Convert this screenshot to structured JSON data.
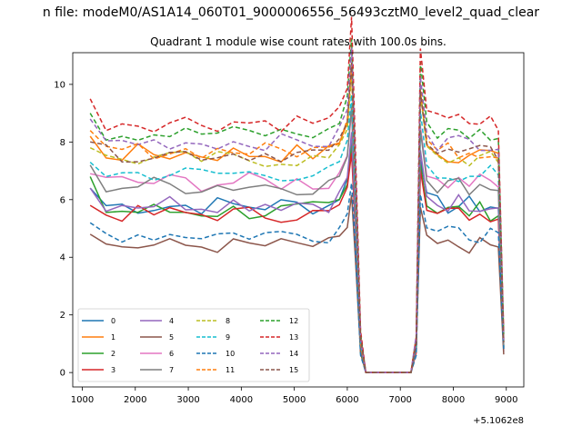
{
  "chart_data": {
    "type": "line",
    "suptitle": "n file: modeM0/AS1A14_060T01_9000006556_56493cztM0_level2_quad_clear",
    "title": "Quadrant 1 module wise count rates with 100.0s bins.",
    "xlabel": "",
    "ylabel": "",
    "x_offset_label": "+5.1062e8",
    "xlim": [
      820,
      9330
    ],
    "ylim": [
      -0.5,
      11.1
    ],
    "x_ticks": [
      1000,
      2000,
      3000,
      4000,
      5000,
      6000,
      7000,
      8000,
      9000
    ],
    "y_ticks": [
      0,
      2,
      4,
      6,
      8,
      10
    ],
    "grid": false,
    "legend": {
      "placement": "lower-left",
      "columns": 4
    },
    "profile_x": [
      1150,
      1450,
      1750,
      2050,
      2350,
      2650,
      2950,
      3250,
      3550,
      3850,
      4150,
      4450,
      4750,
      5050,
      5350,
      5650,
      5850,
      6000,
      6080,
      6150,
      6250,
      6350,
      6700,
      7000,
      7200,
      7300,
      7380,
      7500,
      7700,
      7900,
      8100,
      8300,
      8500,
      8700,
      8850,
      8950
    ],
    "profile_shape": [
      1.0,
      1.0,
      1.0,
      1.0,
      1.0,
      1.0,
      1.0,
      1.0,
      1.0,
      1.0,
      1.0,
      1.0,
      1.0,
      1.0,
      1.0,
      1.0,
      1.05,
      1.15,
      1.4,
      0.9,
      0.15,
      0.0,
      0.0,
      0.0,
      0.0,
      0.15,
      1.3,
      1.05,
      1.0,
      1.0,
      1.0,
      1.0,
      1.0,
      1.0,
      0.98,
      0.15
    ],
    "series": [
      {
        "name": "0",
        "color": "#1f77b4",
        "dash": "solid",
        "level": 5.8,
        "start": 6.4,
        "noise": 0.35
      },
      {
        "name": "1",
        "color": "#ff7f0e",
        "dash": "solid",
        "level": 7.6,
        "start": 8.2,
        "noise": 0.35
      },
      {
        "name": "2",
        "color": "#2ca02c",
        "dash": "solid",
        "level": 5.6,
        "start": 6.8,
        "noise": 0.35
      },
      {
        "name": "3",
        "color": "#d62728",
        "dash": "solid",
        "level": 5.5,
        "start": 5.8,
        "noise": 0.3
      },
      {
        "name": "4",
        "color": "#9467bd",
        "dash": "solid",
        "level": 5.9,
        "start": 6.4,
        "noise": 0.35
      },
      {
        "name": "5",
        "color": "#8c564b",
        "dash": "solid",
        "level": 4.4,
        "start": 4.8,
        "noise": 0.3
      },
      {
        "name": "6",
        "color": "#e377c2",
        "dash": "solid",
        "level": 6.6,
        "start": 6.9,
        "noise": 0.35
      },
      {
        "name": "7",
        "color": "#7f7f7f",
        "dash": "solid",
        "level": 6.5,
        "start": 7.2,
        "noise": 0.35
      },
      {
        "name": "8",
        "color": "#bcbd22",
        "dash": "dashed",
        "level": 7.4,
        "start": 7.8,
        "noise": 0.3
      },
      {
        "name": "9",
        "color": "#17becf",
        "dash": "dashed",
        "level": 6.9,
        "start": 7.3,
        "noise": 0.3
      },
      {
        "name": "10",
        "color": "#1f77b4",
        "dash": "dashed",
        "level": 4.8,
        "start": 5.2,
        "noise": 0.3
      },
      {
        "name": "11",
        "color": "#ff7f0e",
        "dash": "dashed",
        "level": 7.7,
        "start": 8.4,
        "noise": 0.3
      },
      {
        "name": "12",
        "color": "#2ca02c",
        "dash": "dashed",
        "level": 8.3,
        "start": 9.0,
        "noise": 0.3
      },
      {
        "name": "13",
        "color": "#d62728",
        "dash": "dashed",
        "level": 8.7,
        "start": 9.5,
        "noise": 0.35
      },
      {
        "name": "14",
        "color": "#9467bd",
        "dash": "dashed",
        "level": 8.0,
        "start": 8.8,
        "noise": 0.3
      },
      {
        "name": "15",
        "color": "#8c564b",
        "dash": "dashed",
        "level": 7.6,
        "start": 8.0,
        "noise": 0.3
      }
    ]
  }
}
